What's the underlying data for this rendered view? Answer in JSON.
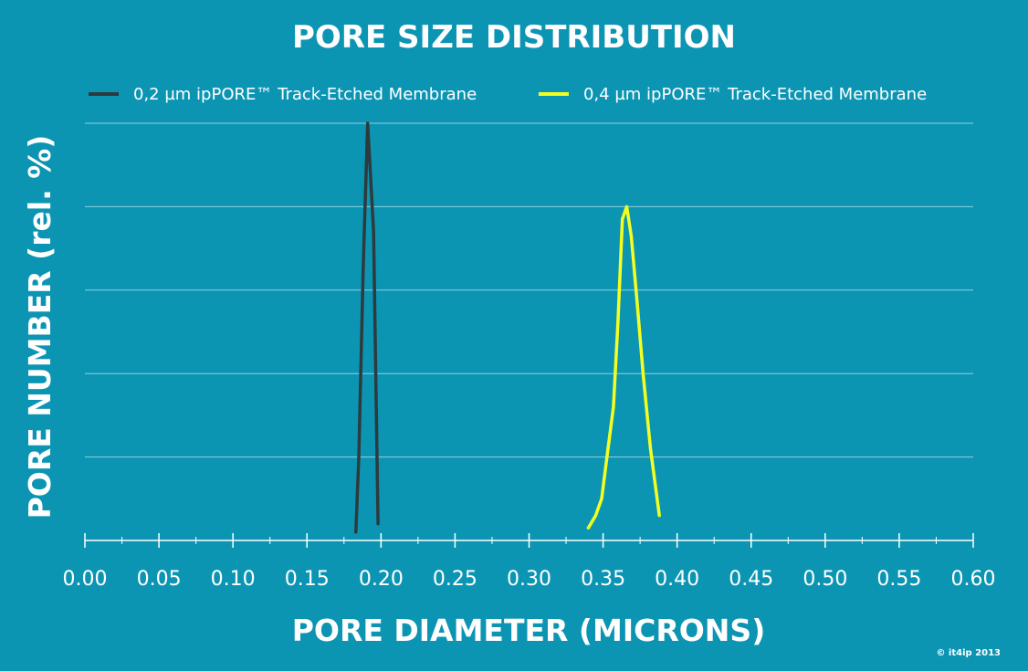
{
  "colors": {
    "background": "#0c95b3",
    "gridline": "#8fd0de",
    "axis": "#ffffff",
    "series_dark": "#2d3a3e",
    "series_yellow": "#f4ff1f"
  },
  "chart_data": {
    "type": "line",
    "title": "PORE SIZE DISTRIBUTION",
    "xlabel": "PORE DIAMETER (MICRONS)",
    "ylabel": "PORE NUMBER (rel. %)",
    "xlim": [
      0,
      0.6
    ],
    "ylim": [
      0,
      50
    ],
    "x_ticks": [
      "0.00",
      "0.05",
      "0.10",
      "0.15",
      "0.20",
      "0.25",
      "0.30",
      "0.35",
      "0.40",
      "0.45",
      "0.50",
      "0.55",
      "0.60"
    ],
    "y_gridlines": [
      10,
      20,
      30,
      40,
      50
    ],
    "grid": true,
    "legend_position": "top",
    "series": [
      {
        "name": "0,2 µm ipPORE™ Track-Etched Membrane",
        "color": "#2d3a3e",
        "points": [
          [
            0.183,
            1.0
          ],
          [
            0.185,
            10.0
          ],
          [
            0.188,
            33.0
          ],
          [
            0.191,
            50.0
          ],
          [
            0.195,
            37.0
          ],
          [
            0.198,
            2.0
          ]
        ]
      },
      {
        "name": "0,4 µm ipPORE™ Track-Etched Membrane",
        "color": "#f4ff1f",
        "points": [
          [
            0.34,
            1.5
          ],
          [
            0.345,
            3.0
          ],
          [
            0.349,
            5.0
          ],
          [
            0.353,
            10.5
          ],
          [
            0.357,
            16.0
          ],
          [
            0.36,
            26.0
          ],
          [
            0.363,
            38.5
          ],
          [
            0.366,
            40.0
          ],
          [
            0.369,
            36.5
          ],
          [
            0.373,
            28.5
          ],
          [
            0.377,
            20.0
          ],
          [
            0.382,
            11.0
          ],
          [
            0.388,
            3.0
          ]
        ]
      }
    ]
  },
  "copyright": "© it4ip 2013"
}
